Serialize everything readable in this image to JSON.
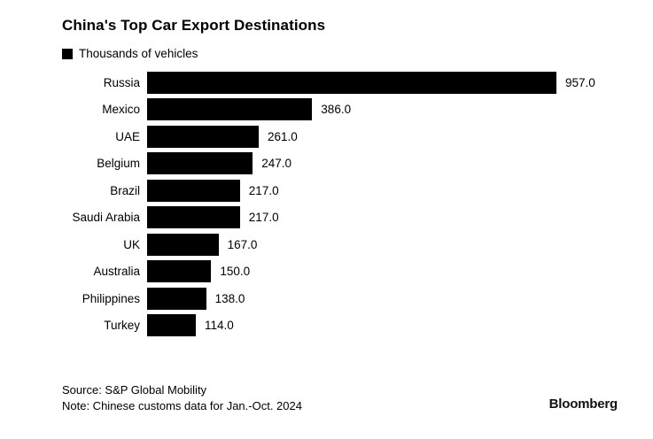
{
  "page": {
    "background": "#ffffff",
    "text_color": "#000000"
  },
  "header": {
    "title": "China's Top Car Export Destinations",
    "legend": {
      "label": "Thousands of vehicles",
      "swatch_color": "#000000"
    }
  },
  "chart_data": {
    "type": "bar",
    "orientation": "horizontal",
    "title": "China's Top Car Export Destinations",
    "legend": [
      "Thousands of vehicles"
    ],
    "legend_position": "top-left",
    "categories": [
      "Russia",
      "Mexico",
      "UAE",
      "Belgium",
      "Brazil",
      "Saudi Arabia",
      "UK",
      "Australia",
      "Philippines",
      "Turkey"
    ],
    "values": [
      957.0,
      386.0,
      261.0,
      247.0,
      217.0,
      217.0,
      167.0,
      150.0,
      138.0,
      114.0
    ],
    "value_labels": [
      "957.0",
      "386.0",
      "261.0",
      "247.0",
      "217.0",
      "217.0",
      "167.0",
      "150.0",
      "138.0",
      "114.0"
    ],
    "xlabel": "",
    "ylabel": "",
    "xlim": [
      0,
      1000
    ],
    "grid": false,
    "bar_color": "#000000"
  },
  "footer": {
    "source": "Source: S&P Global Mobility",
    "note": "Note: Chinese customs data for Jan.-Oct. 2024",
    "brand": "Bloomberg"
  }
}
